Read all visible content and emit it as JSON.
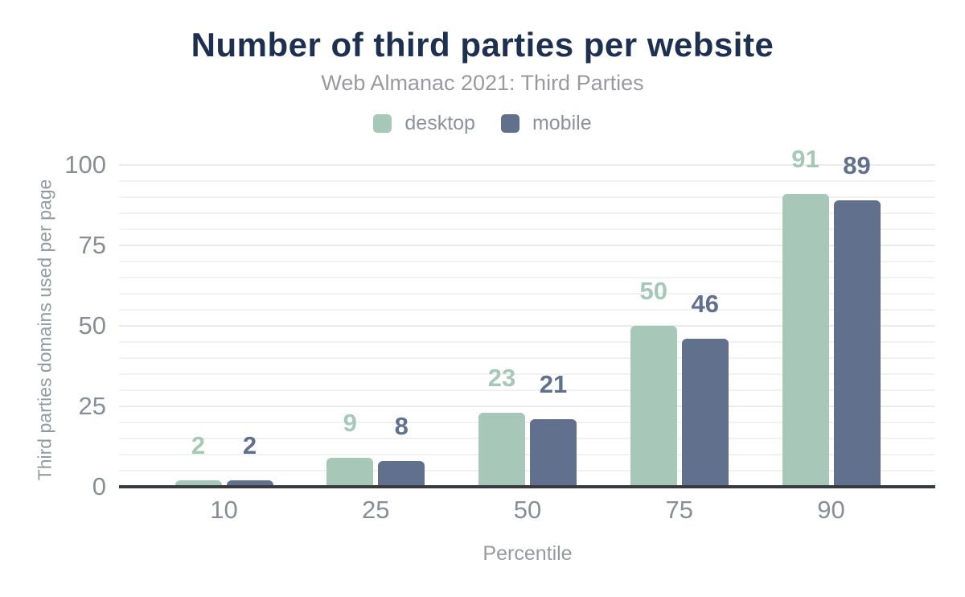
{
  "chart_data": {
    "type": "bar",
    "title": "Number of third parties per website",
    "subtitle": "Web Almanac 2021: Third Parties",
    "categories": [
      "10",
      "25",
      "50",
      "75",
      "90"
    ],
    "series": [
      {
        "name": "desktop",
        "color": "#a7c8b9",
        "values": [
          2,
          9,
          23,
          50,
          91
        ]
      },
      {
        "name": "mobile",
        "color": "#61708d",
        "values": [
          2,
          8,
          21,
          46,
          89
        ]
      }
    ],
    "xlabel": "Percentile",
    "ylabel": "Third parties domains used per page",
    "yticks": [
      0,
      25,
      50,
      75,
      100
    ],
    "ylim": [
      0,
      100
    ],
    "grid": {
      "orientation": "horizontal",
      "minor_step": 5,
      "major_step": 25,
      "minor_color": "#f2f2f4",
      "major_color": "#ebebee"
    },
    "legend_position": "top",
    "colors": {
      "title": "#1e3050",
      "subtitle": "#9a9a9e",
      "axis_text": "#898d96",
      "axis_title": "#96999f",
      "axis_line": "#373a40",
      "background": "#ffffff"
    }
  }
}
